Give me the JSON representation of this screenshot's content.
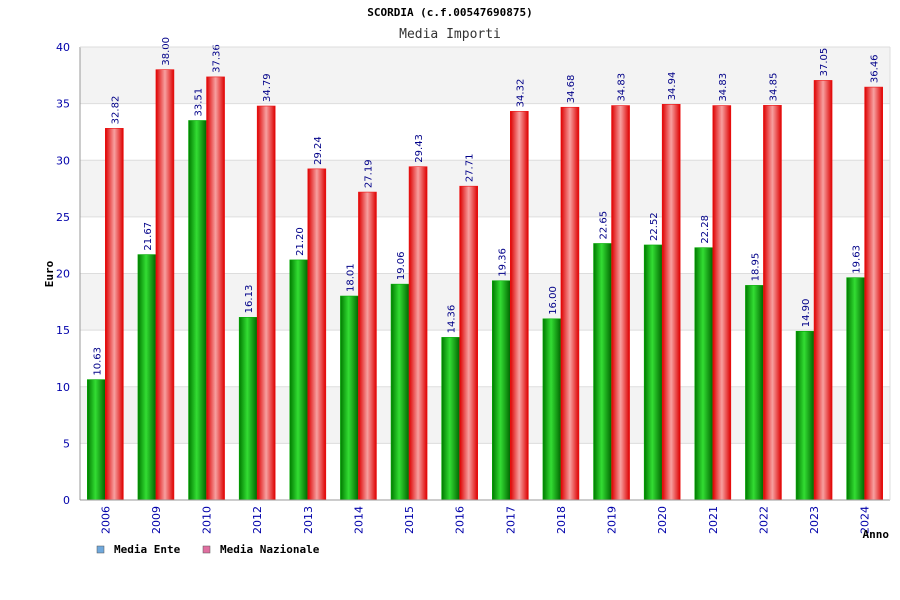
{
  "chart_data": {
    "type": "bar",
    "title": "SCORDIA (c.f.00547690875)",
    "subtitle": "Media Importi",
    "xlabel": "Anno",
    "ylabel": "Euro",
    "ylim": [
      0,
      40
    ],
    "yticks": [
      0,
      5,
      10,
      15,
      20,
      25,
      30,
      35,
      40
    ],
    "grid": true,
    "legend_position": "bottom-left",
    "categories": [
      "2006",
      "2009",
      "2010",
      "2012",
      "2013",
      "2014",
      "2015",
      "2016",
      "2017",
      "2018",
      "2019",
      "2020",
      "2021",
      "2022",
      "2023",
      "2024"
    ],
    "series": [
      {
        "name": "Media Ente",
        "color": "#00aa00",
        "legend_color": "#6fa8dc",
        "values": [
          10.63,
          21.67,
          33.51,
          16.13,
          21.2,
          18.01,
          19.06,
          14.36,
          19.36,
          16.0,
          22.65,
          22.52,
          22.28,
          18.95,
          14.9,
          19.63
        ],
        "labels": [
          "10.63",
          "21.67",
          "33.51",
          "16.13",
          "21.20",
          "18.01",
          "19.06",
          "14.36",
          "19.36",
          "16.00",
          "22.65",
          "22.52",
          "22.28",
          "18.95",
          "14.90",
          "19.63"
        ]
      },
      {
        "name": "Media Nazionale",
        "color": "#ee1111",
        "legend_color": "#e06fa0",
        "values": [
          32.82,
          38.0,
          37.36,
          34.79,
          29.24,
          27.19,
          29.43,
          27.71,
          34.32,
          34.68,
          34.83,
          34.94,
          34.83,
          34.85,
          37.05,
          36.46
        ],
        "labels": [
          "32.82",
          "38.00",
          "37.36",
          "34.79",
          "29.24",
          "27.19",
          "29.43",
          "27.71",
          "34.32",
          "34.68",
          "34.83",
          "34.94",
          "34.83",
          "34.85",
          "37.05",
          "36.46"
        ]
      }
    ]
  }
}
